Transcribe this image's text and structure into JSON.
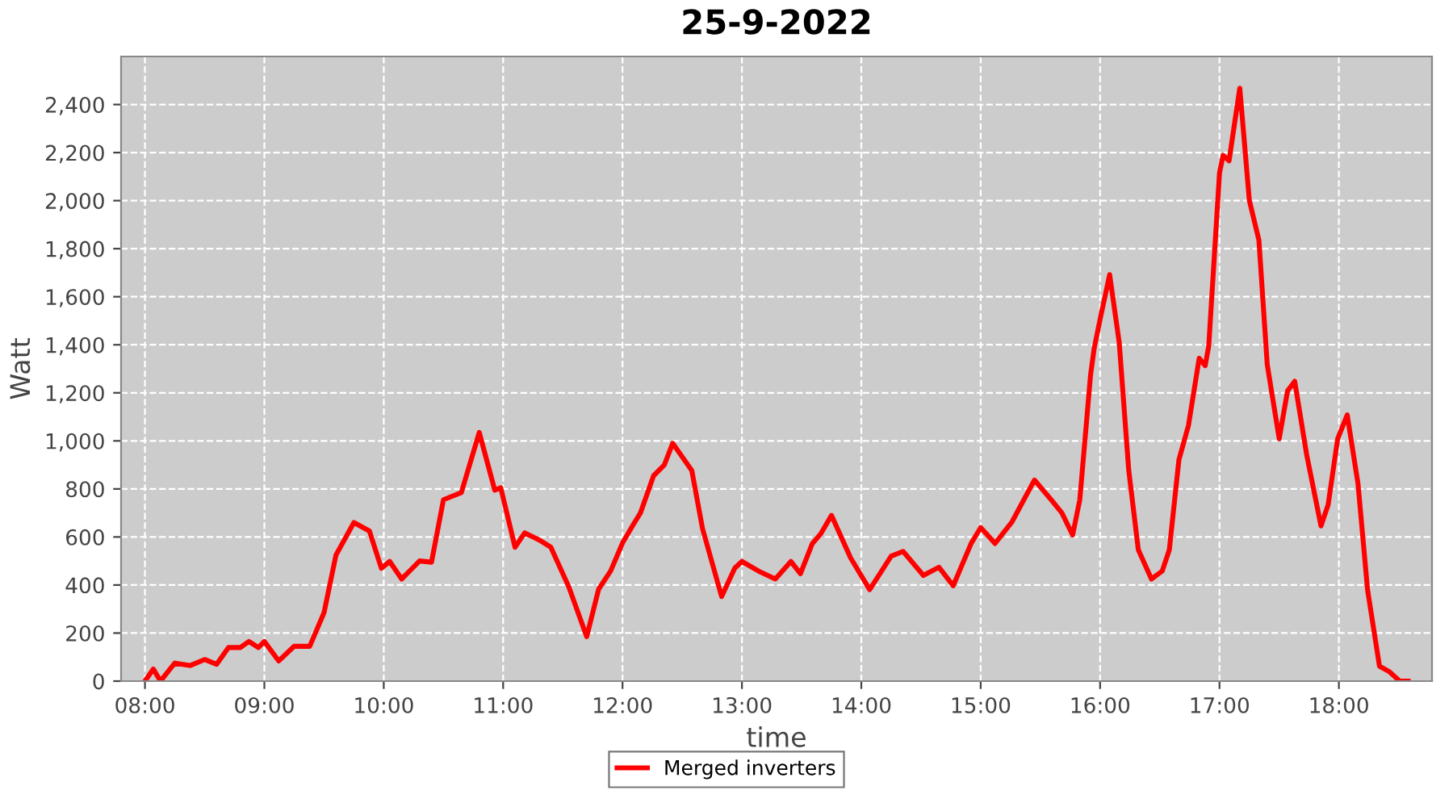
{
  "chart_data": {
    "type": "line",
    "title": "25-9-2022",
    "xlabel": "time",
    "ylabel": "Watt",
    "xlim": [
      7.8,
      18.78
    ],
    "ylim": [
      0,
      2600
    ],
    "xticks": [
      {
        "value": 8,
        "label": "08:00"
      },
      {
        "value": 9,
        "label": "09:00"
      },
      {
        "value": 10,
        "label": "10:00"
      },
      {
        "value": 11,
        "label": "11:00"
      },
      {
        "value": 12,
        "label": "12:00"
      },
      {
        "value": 13,
        "label": "13:00"
      },
      {
        "value": 14,
        "label": "14:00"
      },
      {
        "value": 15,
        "label": "15:00"
      },
      {
        "value": 16,
        "label": "16:00"
      },
      {
        "value": 17,
        "label": "17:00"
      },
      {
        "value": 18,
        "label": "18:00"
      }
    ],
    "yticks": [
      0,
      200,
      400,
      600,
      800,
      {
        "value": 1000,
        "label": "1,000"
      },
      {
        "value": 1200,
        "label": "1,200"
      },
      {
        "value": 1400,
        "label": "1,400"
      },
      {
        "value": 1600,
        "label": "1,600"
      },
      {
        "value": 1800,
        "label": "1,800"
      },
      {
        "value": 2000,
        "label": "2,000"
      },
      {
        "value": 2200,
        "label": "2,200"
      },
      {
        "value": 2400,
        "label": "2,400"
      }
    ],
    "grid": true,
    "legend": "bottom",
    "marker": "none",
    "line_style": "solid",
    "series": [
      {
        "name": "Merged inverters",
        "color": "#ff0000",
        "x": [
          8.0,
          8.07,
          8.13,
          8.25,
          8.38,
          8.5,
          8.6,
          8.7,
          8.8,
          8.87,
          8.95,
          9.0,
          9.12,
          9.25,
          9.38,
          9.5,
          9.6,
          9.75,
          9.88,
          9.98,
          10.05,
          10.15,
          10.3,
          10.4,
          10.5,
          10.65,
          10.8,
          10.93,
          10.98,
          11.1,
          11.18,
          11.3,
          11.4,
          11.55,
          11.7,
          11.8,
          11.9,
          12.0,
          12.1,
          12.15,
          12.26,
          12.35,
          12.42,
          12.58,
          12.67,
          12.83,
          12.94,
          13.0,
          13.14,
          13.28,
          13.41,
          13.49,
          13.59,
          13.66,
          13.75,
          13.91,
          14.07,
          14.25,
          14.35,
          14.52,
          14.65,
          14.77,
          14.92,
          15.0,
          15.12,
          15.26,
          15.45,
          15.6,
          15.68,
          15.77,
          15.83,
          15.92,
          15.95,
          16.0,
          16.08,
          16.16,
          16.24,
          16.32,
          16.43,
          16.52,
          16.58,
          16.66,
          16.74,
          16.83,
          16.88,
          16.91,
          17.0,
          17.03,
          17.08,
          17.17,
          17.25,
          17.33,
          17.4,
          17.5,
          17.57,
          17.63,
          17.73,
          17.85,
          17.91,
          17.99,
          18.07,
          18.16,
          18.24,
          18.34,
          18.42,
          18.51,
          18.58
        ],
        "values": [
          0,
          50,
          0,
          75,
          65,
          90,
          70,
          140,
          140,
          165,
          140,
          165,
          84,
          145,
          145,
          285,
          525,
          660,
          625,
          470,
          498,
          425,
          500,
          495,
          755,
          785,
          1035,
          795,
          805,
          557,
          617,
          588,
          557,
          392,
          185,
          383,
          458,
          575,
          660,
          700,
          855,
          900,
          990,
          877,
          635,
          352,
          470,
          498,
          458,
          425,
          498,
          447,
          573,
          613,
          690,
          513,
          381,
          520,
          540,
          440,
          474,
          397,
          573,
          639,
          573,
          661,
          837,
          749,
          700,
          608,
          755,
          1274,
          1384,
          1506,
          1692,
          1410,
          877,
          547,
          425,
          458,
          547,
          921,
          1064,
          1344,
          1313,
          1395,
          2115,
          2188,
          2166,
          2468,
          2001,
          1836,
          1318,
          1009,
          1208,
          1248,
          943,
          646,
          734,
          1009,
          1108,
          822,
          381,
          62,
          40,
          0,
          0
        ]
      }
    ]
  }
}
